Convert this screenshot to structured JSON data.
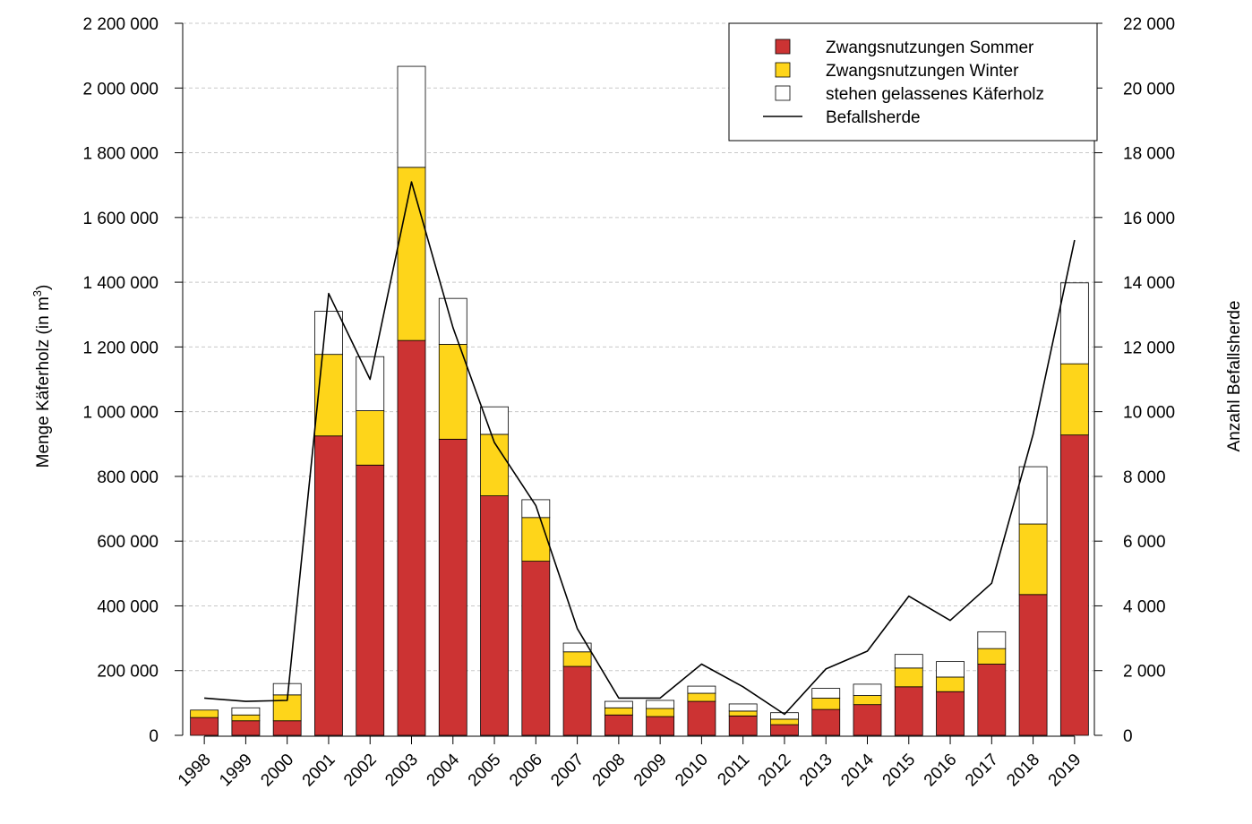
{
  "chart_data": {
    "type": "bar",
    "stacked": true,
    "categories": [
      "1998",
      "1999",
      "2000",
      "2001",
      "2002",
      "2003",
      "2004",
      "2005",
      "2006",
      "2007",
      "2008",
      "2009",
      "2010",
      "2011",
      "2012",
      "2013",
      "2014",
      "2015",
      "2016",
      "2017",
      "2018",
      "2019"
    ],
    "series": [
      {
        "name": "Zwangsnutzungen Sommer",
        "color": "#cc3333",
        "values": [
          55000,
          45000,
          45000,
          925000,
          835000,
          1220000,
          915000,
          740000,
          538000,
          213000,
          63000,
          58000,
          105000,
          60000,
          33000,
          80000,
          95000,
          150000,
          135000,
          220000,
          435000,
          928000
        ]
      },
      {
        "name": "Zwangsnutzungen Winter",
        "color": "#fed51a",
        "values": [
          23000,
          18000,
          80000,
          252000,
          168000,
          535000,
          293000,
          190000,
          135000,
          45000,
          22000,
          25000,
          25000,
          15000,
          17000,
          35000,
          28000,
          58000,
          45000,
          48000,
          218000,
          220000
        ]
      },
      {
        "name": "stehen gelassenes Käferholz",
        "color": "#ffffff",
        "values": [
          0,
          22000,
          35000,
          133000,
          167000,
          312000,
          142000,
          85000,
          55000,
          27000,
          20000,
          25000,
          22000,
          22000,
          20000,
          30000,
          35000,
          42000,
          48000,
          52000,
          177000,
          250000
        ]
      }
    ],
    "line_series": {
      "name": "Befallsherde",
      "axis": "right",
      "color": "#000000",
      "values": [
        1150,
        1050,
        1080,
        13650,
        11000,
        17100,
        12600,
        9050,
        7100,
        3300,
        1150,
        1150,
        2200,
        1500,
        650,
        2050,
        2600,
        4300,
        3550,
        4700,
        9300,
        15300
      ]
    },
    "ylabel": "Menge Käferholz (in m",
    "ylabel_sup": "3",
    "ylabel_close": ")",
    "y2label": "Anzahl Befallsherde",
    "ylim": [
      0,
      2200000
    ],
    "y2lim": [
      0,
      22000
    ],
    "yticks": [
      "0",
      "200 000",
      "400 000",
      "600 000",
      "800 000",
      "1 000 000",
      "1 200 000",
      "1 400 000",
      "1 600 000",
      "1 800 000",
      "2 000 000",
      "2 200 000"
    ],
    "y2ticks": [
      "0",
      "2 000",
      "4 000",
      "6 000",
      "8 000",
      "10 000",
      "12 000",
      "14 000",
      "16 000",
      "18 000",
      "20 000",
      "22 000"
    ],
    "grid": "horizontal dashed",
    "legend_position": "top-right",
    "legend": [
      {
        "label": "Zwangsnutzungen Sommer",
        "swatch": "box",
        "color": "#cc3333"
      },
      {
        "label": "Zwangsnutzungen Winter",
        "swatch": "box",
        "color": "#fed51a"
      },
      {
        "label": "stehen gelassenes Käferholz",
        "swatch": "box",
        "color": "#ffffff"
      },
      {
        "label": "Befallsherde",
        "swatch": "line",
        "color": "#000000"
      }
    ]
  }
}
